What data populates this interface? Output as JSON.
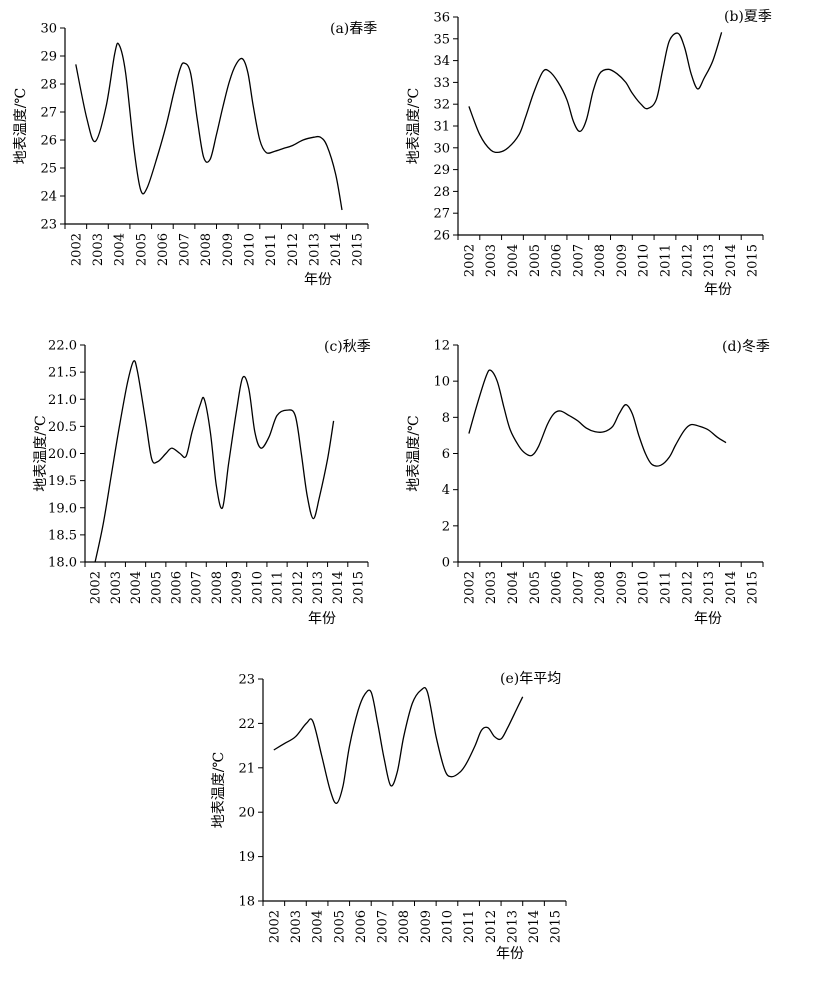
{
  "chart_data": [
    {
      "type": "line",
      "title": "(a)春季",
      "xlabel": "年份",
      "ylabel": "地表温度/℃",
      "categories": [
        "2002",
        "2003",
        "2004",
        "2005",
        "2006",
        "2007",
        "2008",
        "2009",
        "2010",
        "2011",
        "2012",
        "2013",
        "2014",
        "2015"
      ],
      "ylim": [
        23,
        30
      ],
      "yticks": [
        "23",
        "24",
        "25",
        "26",
        "27",
        "28",
        "29",
        "30"
      ],
      "grid": false,
      "series": [
        {
          "values": [
            [
              2002.0,
              28.7
            ],
            [
              2002.5,
              26.8
            ],
            [
              2002.9,
              25.95
            ],
            [
              2003.4,
              27.2
            ],
            [
              2003.8,
              29.1
            ],
            [
              2004.0,
              29.4
            ],
            [
              2004.3,
              28.4
            ],
            [
              2004.7,
              25.6
            ],
            [
              2005.0,
              24.2
            ],
            [
              2005.3,
              24.3
            ],
            [
              2005.8,
              25.5
            ],
            [
              2006.2,
              26.6
            ],
            [
              2006.5,
              27.6
            ],
            [
              2006.8,
              28.5
            ],
            [
              2007.0,
              28.75
            ],
            [
              2007.3,
              28.4
            ],
            [
              2007.6,
              26.8
            ],
            [
              2007.9,
              25.4
            ],
            [
              2008.2,
              25.3
            ],
            [
              2008.5,
              26.2
            ],
            [
              2008.8,
              27.2
            ],
            [
              2009.1,
              28.1
            ],
            [
              2009.4,
              28.7
            ],
            [
              2009.7,
              28.9
            ],
            [
              2009.95,
              28.4
            ],
            [
              2010.2,
              27.2
            ],
            [
              2010.5,
              26.0
            ],
            [
              2010.8,
              25.55
            ],
            [
              2011.2,
              25.6
            ],
            [
              2011.6,
              25.7
            ],
            [
              2012.0,
              25.8
            ],
            [
              2012.5,
              26.0
            ],
            [
              2013.0,
              26.1
            ],
            [
              2013.3,
              26.1
            ],
            [
              2013.6,
              25.8
            ],
            [
              2014.0,
              24.8
            ],
            [
              2014.3,
              23.5
            ]
          ]
        }
      ]
    },
    {
      "type": "line",
      "title": "(b)夏季",
      "xlabel": "年份",
      "ylabel": "地表温度/℃",
      "categories": [
        "2002",
        "2003",
        "2004",
        "2005",
        "2006",
        "2007",
        "2008",
        "2009",
        "2010",
        "2011",
        "2012",
        "2013",
        "2014",
        "2015"
      ],
      "ylim": [
        26,
        36
      ],
      "yticks": [
        "26",
        "27",
        "28",
        "29",
        "30",
        "31",
        "32",
        "33",
        "34",
        "35",
        "36"
      ],
      "grid": false,
      "series": [
        {
          "values": [
            [
              2002.0,
              31.9
            ],
            [
              2002.5,
              30.6
            ],
            [
              2003.0,
              29.9
            ],
            [
              2003.4,
              29.8
            ],
            [
              2003.8,
              30.0
            ],
            [
              2004.3,
              30.6
            ],
            [
              2004.6,
              31.4
            ],
            [
              2005.0,
              32.6
            ],
            [
              2005.4,
              33.5
            ],
            [
              2005.7,
              33.5
            ],
            [
              2006.1,
              33.0
            ],
            [
              2006.5,
              32.2
            ],
            [
              2006.8,
              31.2
            ],
            [
              2007.1,
              30.75
            ],
            [
              2007.4,
              31.3
            ],
            [
              2007.7,
              32.6
            ],
            [
              2008.0,
              33.4
            ],
            [
              2008.4,
              33.6
            ],
            [
              2008.8,
              33.4
            ],
            [
              2009.2,
              33.0
            ],
            [
              2009.5,
              32.5
            ],
            [
              2009.9,
              32.0
            ],
            [
              2010.2,
              31.8
            ],
            [
              2010.6,
              32.2
            ],
            [
              2010.9,
              33.6
            ],
            [
              2011.2,
              34.9
            ],
            [
              2011.6,
              35.25
            ],
            [
              2011.9,
              34.6
            ],
            [
              2012.2,
              33.4
            ],
            [
              2012.5,
              32.7
            ],
            [
              2012.8,
              33.2
            ],
            [
              2013.2,
              34.0
            ],
            [
              2013.6,
              35.3
            ]
          ]
        }
      ]
    },
    {
      "type": "line",
      "title": "(c)秋季",
      "xlabel": "年份",
      "ylabel": "地表温度/℃",
      "categories": [
        "2002",
        "2003",
        "2004",
        "2005",
        "2006",
        "2007",
        "2008",
        "2009",
        "2010",
        "2011",
        "2012",
        "2013",
        "2014",
        "2015"
      ],
      "ylim": [
        18.0,
        22.0
      ],
      "yticks": [
        "18.0",
        "18.5",
        "19.0",
        "19.5",
        "20.0",
        "20.5",
        "21.0",
        "21.5",
        "22.0"
      ],
      "grid": false,
      "series": [
        {
          "values": [
            [
              2002.0,
              18.0
            ],
            [
              2002.4,
              18.7
            ],
            [
              2002.8,
              19.6
            ],
            [
              2003.2,
              20.5
            ],
            [
              2003.6,
              21.3
            ],
            [
              2003.9,
              21.7
            ],
            [
              2004.1,
              21.5
            ],
            [
              2004.5,
              20.6
            ],
            [
              2004.8,
              19.9
            ],
            [
              2005.1,
              19.85
            ],
            [
              2005.5,
              20.0
            ],
            [
              2005.8,
              20.1
            ],
            [
              2006.2,
              20.0
            ],
            [
              2006.5,
              19.95
            ],
            [
              2006.8,
              20.4
            ],
            [
              2007.2,
              20.9
            ],
            [
              2007.4,
              21.0
            ],
            [
              2007.7,
              20.4
            ],
            [
              2008.0,
              19.4
            ],
            [
              2008.3,
              19.0
            ],
            [
              2008.6,
              19.8
            ],
            [
              2009.0,
              20.8
            ],
            [
              2009.3,
              21.4
            ],
            [
              2009.6,
              21.2
            ],
            [
              2009.9,
              20.4
            ],
            [
              2010.2,
              20.1
            ],
            [
              2010.6,
              20.3
            ],
            [
              2011.0,
              20.7
            ],
            [
              2011.5,
              20.8
            ],
            [
              2011.9,
              20.7
            ],
            [
              2012.2,
              20.0
            ],
            [
              2012.5,
              19.2
            ],
            [
              2012.8,
              18.8
            ],
            [
              2013.1,
              19.2
            ],
            [
              2013.5,
              19.9
            ],
            [
              2013.8,
              20.6
            ]
          ]
        }
      ]
    },
    {
      "type": "line",
      "title": "(d)冬季",
      "xlabel": "年份",
      "ylabel": "地表温度/℃",
      "categories": [
        "2002",
        "2003",
        "2004",
        "2005",
        "2006",
        "2007",
        "2008",
        "2009",
        "2010",
        "2011",
        "2012",
        "2013",
        "2014",
        "2015"
      ],
      "ylim": [
        0,
        12
      ],
      "yticks": [
        "0",
        "2",
        "4",
        "6",
        "8",
        "10",
        "12"
      ],
      "grid": false,
      "series": [
        {
          "values": [
            [
              2002.0,
              7.1
            ],
            [
              2002.4,
              8.8
            ],
            [
              2002.8,
              10.3
            ],
            [
              2003.0,
              10.6
            ],
            [
              2003.3,
              10.0
            ],
            [
              2003.6,
              8.6
            ],
            [
              2003.9,
              7.3
            ],
            [
              2004.3,
              6.4
            ],
            [
              2004.6,
              6.0
            ],
            [
              2004.9,
              5.9
            ],
            [
              2005.2,
              6.4
            ],
            [
              2005.6,
              7.6
            ],
            [
              2005.9,
              8.2
            ],
            [
              2006.2,
              8.35
            ],
            [
              2006.6,
              8.1
            ],
            [
              2007.0,
              7.8
            ],
            [
              2007.4,
              7.4
            ],
            [
              2007.8,
              7.2
            ],
            [
              2008.2,
              7.2
            ],
            [
              2008.6,
              7.5
            ],
            [
              2008.9,
              8.2
            ],
            [
              2009.2,
              8.7
            ],
            [
              2009.5,
              8.2
            ],
            [
              2009.8,
              7.0
            ],
            [
              2010.1,
              6.0
            ],
            [
              2010.4,
              5.4
            ],
            [
              2010.8,
              5.35
            ],
            [
              2011.2,
              5.8
            ],
            [
              2011.5,
              6.5
            ],
            [
              2011.9,
              7.3
            ],
            [
              2012.2,
              7.6
            ],
            [
              2012.6,
              7.5
            ],
            [
              2013.0,
              7.3
            ],
            [
              2013.4,
              6.9
            ],
            [
              2013.8,
              6.6
            ]
          ]
        }
      ]
    },
    {
      "type": "line",
      "title": "(e)年平均",
      "xlabel": "年份",
      "ylabel": "地表温度/℃",
      "categories": [
        "2002",
        "2003",
        "2004",
        "2005",
        "2006",
        "2007",
        "2008",
        "2009",
        "2010",
        "2011",
        "2012",
        "2013",
        "2014",
        "2015"
      ],
      "ylim": [
        18,
        23
      ],
      "yticks": [
        "18",
        "19",
        "20",
        "21",
        "22",
        "23"
      ],
      "grid": false,
      "series": [
        {
          "values": [
            [
              2002.0,
              21.4
            ],
            [
              2002.5,
              21.55
            ],
            [
              2003.0,
              21.7
            ],
            [
              2003.5,
              22.0
            ],
            [
              2003.8,
              22.05
            ],
            [
              2004.2,
              21.3
            ],
            [
              2004.6,
              20.5
            ],
            [
              2004.9,
              20.2
            ],
            [
              2005.2,
              20.6
            ],
            [
              2005.5,
              21.5
            ],
            [
              2005.9,
              22.3
            ],
            [
              2006.2,
              22.65
            ],
            [
              2006.5,
              22.7
            ],
            [
              2006.8,
              22.0
            ],
            [
              2007.1,
              21.2
            ],
            [
              2007.4,
              20.6
            ],
            [
              2007.7,
              20.9
            ],
            [
              2008.0,
              21.7
            ],
            [
              2008.4,
              22.45
            ],
            [
              2008.8,
              22.75
            ],
            [
              2009.1,
              22.7
            ],
            [
              2009.5,
              21.7
            ],
            [
              2009.9,
              20.95
            ],
            [
              2010.2,
              20.8
            ],
            [
              2010.6,
              20.9
            ],
            [
              2010.9,
              21.1
            ],
            [
              2011.3,
              21.5
            ],
            [
              2011.6,
              21.85
            ],
            [
              2011.9,
              21.9
            ],
            [
              2012.2,
              21.7
            ],
            [
              2012.5,
              21.65
            ],
            [
              2012.8,
              21.9
            ],
            [
              2013.2,
              22.3
            ],
            [
              2013.5,
              22.6
            ]
          ]
        }
      ]
    }
  ]
}
